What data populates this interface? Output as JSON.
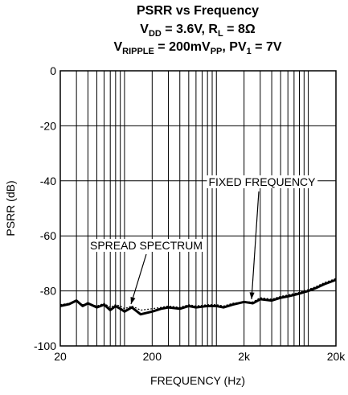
{
  "chart_data": {
    "type": "line",
    "title": "PSRR vs Frequency",
    "subtitle": [
      [
        "V",
        "DD",
        " = 3.6V, R",
        "L",
        " = 8Ω"
      ],
      [
        "V",
        "RIPPLE",
        " = 200mV",
        "PP",
        ", PV",
        "1",
        " = 7V"
      ]
    ],
    "x_label": "FREQUENCY (Hz)",
    "y_label": "PSRR (dB)",
    "x_log": true,
    "grid": true,
    "xlim": [
      20,
      20000
    ],
    "ylim": [
      -100,
      0
    ],
    "xticks": [
      20,
      200,
      {
        "value": 2000,
        "label": "2k"
      },
      {
        "value": 20000,
        "label": "20k"
      }
    ],
    "x_minor_ticks": [
      30,
      40,
      50,
      60,
      70,
      80,
      90,
      100,
      300,
      400,
      500,
      600,
      700,
      800,
      900,
      1000,
      3000,
      4000,
      5000,
      6000,
      7000,
      8000,
      9000,
      10000
    ],
    "yticks": [
      0,
      -20,
      -40,
      -60,
      -80,
      -100
    ],
    "x": [
      20,
      25,
      30,
      35,
      40,
      50,
      60,
      70,
      80,
      90,
      100,
      120,
      150,
      200,
      250,
      300,
      400,
      500,
      600,
      800,
      1000,
      1200,
      1500,
      2000,
      2500,
      3000,
      4000,
      5000,
      6000,
      8000,
      10000,
      12000,
      15000,
      20000
    ],
    "series": [
      {
        "name": "SPREAD SPECTRUM",
        "color": "#000000",
        "style": "solid",
        "values": [
          -85.5,
          -84.8,
          -83.5,
          -85.5,
          -84.5,
          -86,
          -85,
          -87,
          -85.5,
          -86.5,
          -87.5,
          -86,
          -88.5,
          -87.5,
          -86.5,
          -86,
          -86.5,
          -85.5,
          -86,
          -85.5,
          -85.5,
          -86,
          -85,
          -84,
          -84.5,
          -83,
          -83.5,
          -82.5,
          -82,
          -81,
          -80,
          -79,
          -77.5,
          -76
        ]
      },
      {
        "name": "FIXED FREQUENCY",
        "color": "#000000",
        "style": "dotted",
        "values": [
          -85,
          -84.5,
          -84,
          -85,
          -84.5,
          -85.5,
          -84.5,
          -86,
          -85,
          -85.5,
          -86.5,
          -85.5,
          -87,
          -86.5,
          -86,
          -85.5,
          -86,
          -85,
          -85.5,
          -85,
          -85,
          -85.5,
          -84.5,
          -84,
          -84,
          -82.5,
          -83,
          -82,
          -81.5,
          -80.5,
          -79.5,
          -78.5,
          -77,
          -75.5
        ]
      }
    ]
  }
}
